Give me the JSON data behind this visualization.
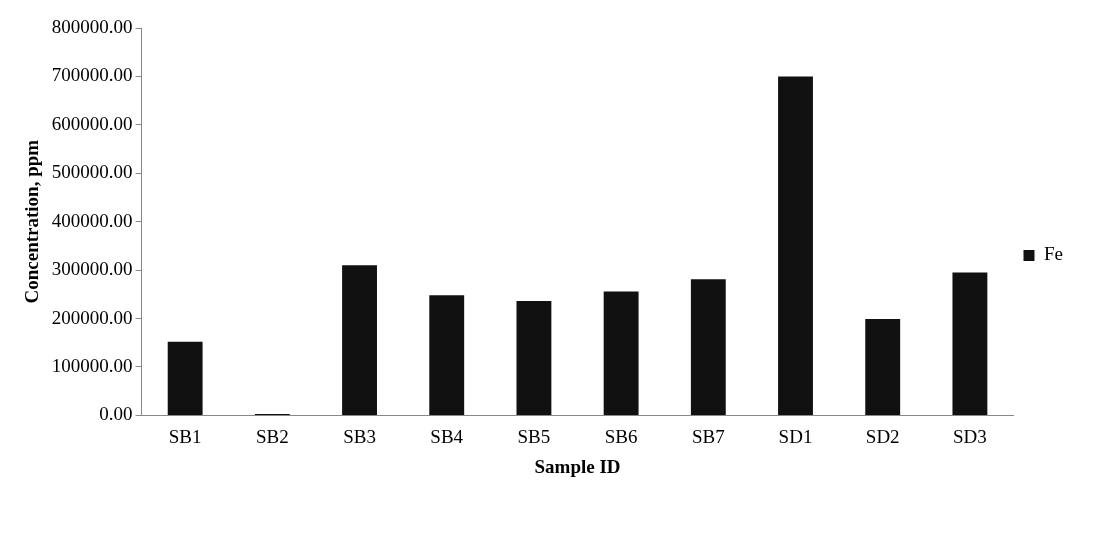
{
  "chart_data": {
    "type": "bar",
    "xlabel": "Sample ID",
    "ylabel": "Concentration, ppm",
    "categories": [
      "SB1",
      "SB2",
      "SB3",
      "SB4",
      "SB5",
      "SB6",
      "SB7",
      "SD1",
      "SD2",
      "SD3"
    ],
    "series": [
      {
        "name": "Fe",
        "color": "#111111",
        "values": [
          152000,
          3000,
          310000,
          248000,
          236000,
          256000,
          281000,
          700000,
          199000,
          295000
        ]
      }
    ],
    "ylim": [
      0,
      800000
    ],
    "yticks": [
      {
        "value": 0,
        "label": "0.00"
      },
      {
        "value": 100000,
        "label": "100000.00"
      },
      {
        "value": 200000,
        "label": "200000.00"
      },
      {
        "value": 300000,
        "label": "300000.00"
      },
      {
        "value": 400000,
        "label": "400000.00"
      },
      {
        "value": 500000,
        "label": "500000.00"
      },
      {
        "value": 600000,
        "label": "600000.00"
      },
      {
        "value": 700000,
        "label": "700000.00"
      },
      {
        "value": 800000,
        "label": "800000.00"
      }
    ],
    "grid": false,
    "legend": "right"
  }
}
